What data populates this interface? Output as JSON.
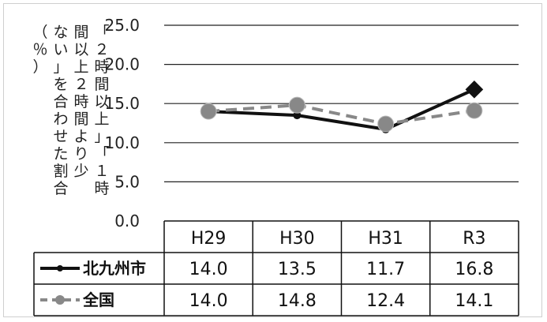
{
  "chart_data": {
    "type": "line",
    "categories": [
      "H29",
      "H30",
      "H31",
      "R3"
    ],
    "series": [
      {
        "name": "北九州市",
        "values": [
          14.0,
          13.5,
          11.7,
          16.8
        ],
        "color": "#111111",
        "style": "solid"
      },
      {
        "name": "全国",
        "values": [
          14.0,
          14.8,
          12.4,
          14.1
        ],
        "color": "#888888",
        "style": "dashed"
      }
    ],
    "ylabel_lines": [
      "（％）",
      "ない」を合わせた割合",
      "間以上２時間より少",
      "「２時間以上」「１時"
    ],
    "ylim": [
      0,
      25
    ],
    "yticks": [
      "0.0",
      "5.0",
      "10.0",
      "15.0",
      "20.0",
      "25.0"
    ],
    "grid": true,
    "legend": "data-table"
  }
}
